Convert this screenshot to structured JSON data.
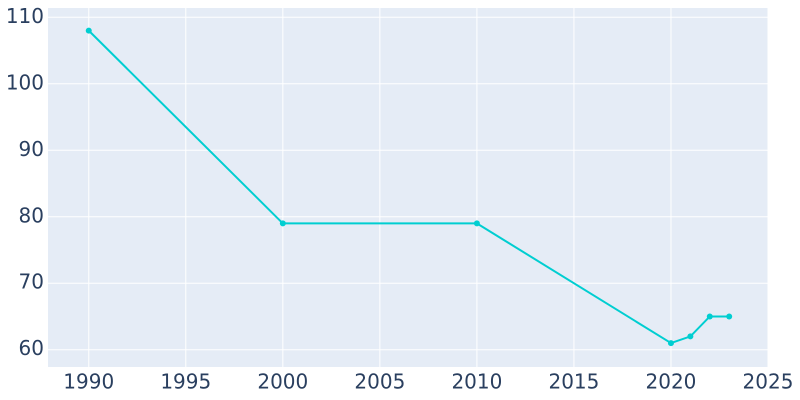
{
  "chart_data": {
    "type": "line",
    "x": [
      1990,
      2000,
      2010,
      2020,
      2021,
      2022,
      2023
    ],
    "series": [
      {
        "values": [
          108,
          79,
          79,
          61,
          62,
          65,
          65
        ],
        "color": "#00ced1"
      }
    ],
    "xlim": [
      1987.9,
      2025
    ],
    "xticks": [
      1990,
      1995,
      2000,
      2005,
      2010,
      2015,
      2020,
      2025
    ],
    "ylim": [
      57.4,
      111.4
    ],
    "yticks": [
      60,
      70,
      80,
      90,
      100,
      110
    ],
    "grid": true,
    "background": "#e5ecf6"
  }
}
